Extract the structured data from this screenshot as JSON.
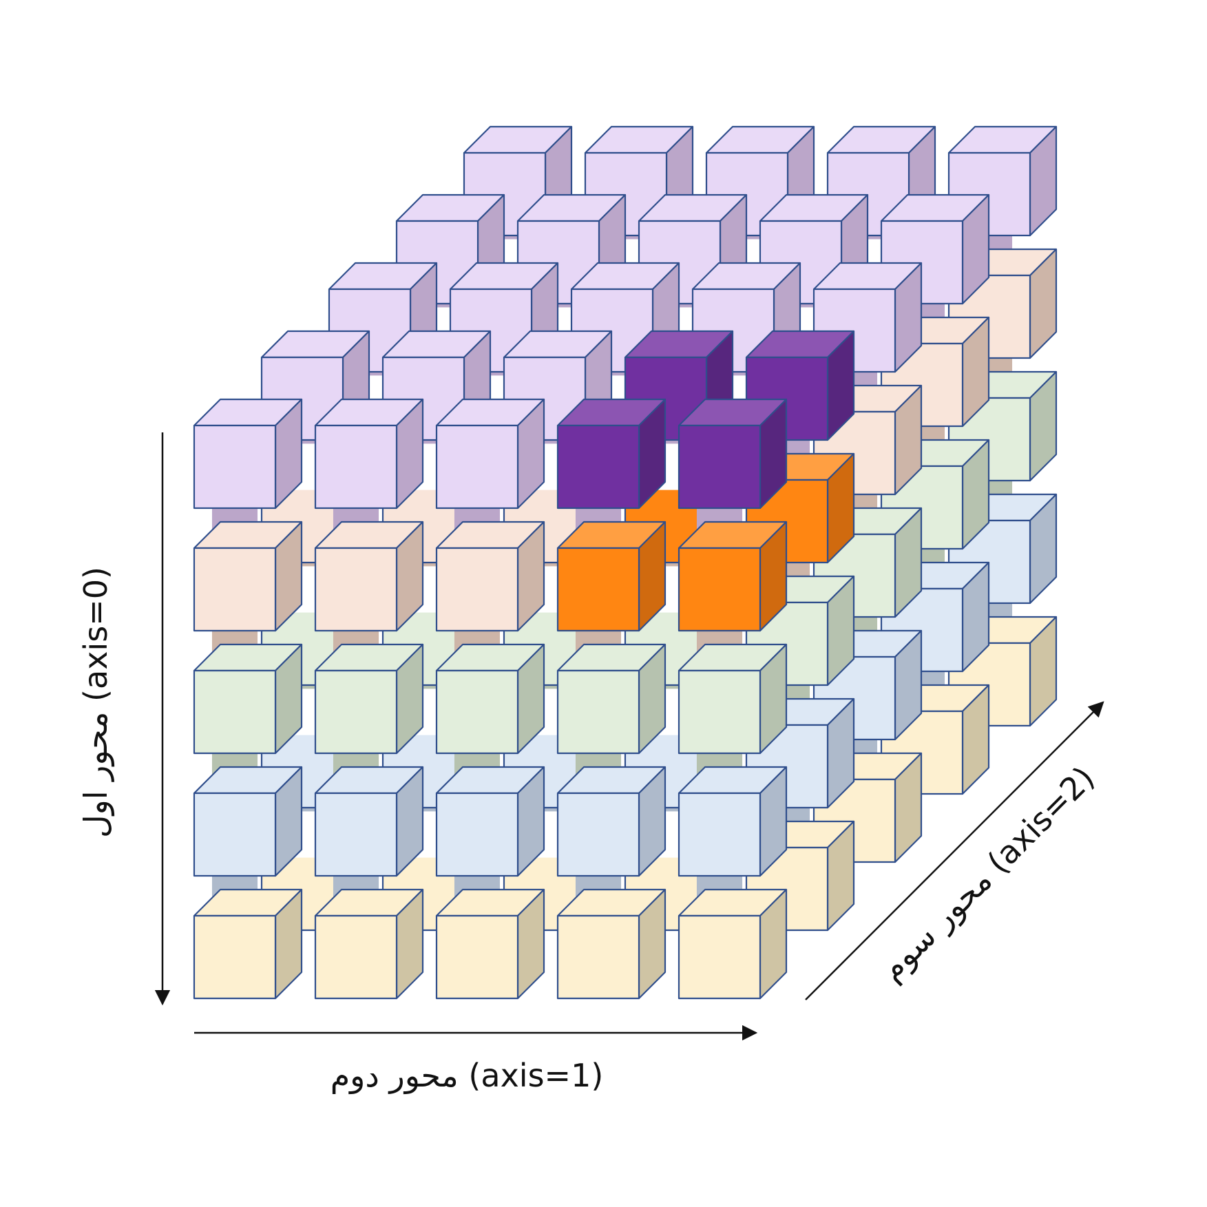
{
  "axes": {
    "axis0_label": "محور اول (axis=0)",
    "axis1_label": "محور دوم (axis=1)",
    "axis2_label": "محور سوم (axis=2)"
  },
  "grid": {
    "layers": 5,
    "rows": 5,
    "cols": 5
  },
  "colors": {
    "edge": "#2F4E8C",
    "layer_palette": [
      {
        "name": "purple",
        "front": "#E7D7F6",
        "top": "#E9DAF7",
        "side": "#BBA6C9"
      },
      {
        "name": "peach",
        "front": "#F9E5DA",
        "top": "#F9E5DA",
        "side": "#CDB5A8"
      },
      {
        "name": "green",
        "front": "#E2EEDC",
        "top": "#E2EEDC",
        "side": "#B6C2AF"
      },
      {
        "name": "blue",
        "front": "#DDE8F5",
        "top": "#DDE8F5",
        "side": "#AEBACB"
      },
      {
        "name": "yellow",
        "front": "#FDF0D0",
        "top": "#FDF0D0",
        "side": "#CFC4A4"
      }
    ],
    "highlight_purple": {
      "front": "#7030A0",
      "top": "#8C55B2",
      "side": "#57267E"
    },
    "highlight_orange": {
      "front": "#FF8612",
      "top": "#FF9F42",
      "side": "#D06A0F"
    }
  },
  "highlighted_cells": [
    {
      "row": 0,
      "col": 3,
      "depth": 0,
      "color": "purple"
    },
    {
      "row": 0,
      "col": 4,
      "depth": 0,
      "color": "purple"
    },
    {
      "row": 0,
      "col": 3,
      "depth": 1,
      "color": "purple"
    },
    {
      "row": 0,
      "col": 4,
      "depth": 1,
      "color": "purple"
    },
    {
      "row": 1,
      "col": 3,
      "depth": 0,
      "color": "orange"
    },
    {
      "row": 1,
      "col": 4,
      "depth": 0,
      "color": "orange"
    },
    {
      "row": 1,
      "col": 3,
      "depth": 1,
      "color": "orange"
    },
    {
      "row": 1,
      "col": 4,
      "depth": 1,
      "color": "orange"
    }
  ]
}
